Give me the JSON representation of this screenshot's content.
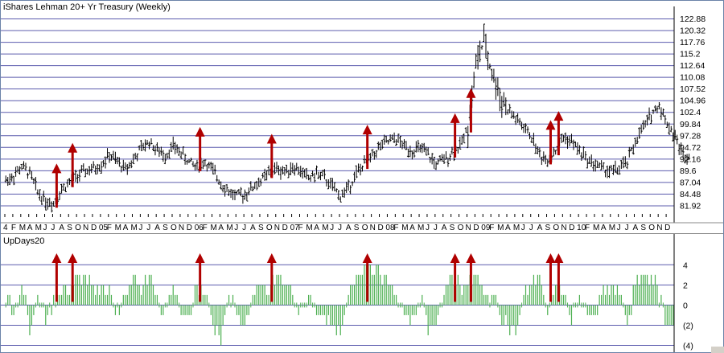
{
  "colors": {
    "price_grid": "#4040a0",
    "indicator_grid": "#4040a0",
    "price_bars": "#000000",
    "indicator_bars": "#4caf50",
    "arrows": "#b00000",
    "frame": "#6b83a8"
  },
  "chart_data": [
    {
      "type": "bar",
      "subtype": "ohlc-weekly",
      "title": "iShares Lehman 20+ Yr Treasury (Weekly)",
      "y_ticks": [
        122.88,
        120.32,
        117.76,
        115.2,
        112.64,
        110.08,
        107.52,
        104.96,
        102.4,
        99.84,
        97.28,
        94.72,
        92.16,
        89.6,
        87.04,
        84.48,
        81.92
      ],
      "y_tick_labels": [
        "122.88",
        "120.32",
        "117.76",
        "115.2",
        "112.64",
        "110.08",
        "107.52",
        "104.96",
        "102.4",
        "99.84",
        "97.28",
        "94.72",
        "92.16",
        "89.6",
        "87.04",
        "84.48",
        "81.92"
      ],
      "ylim": [
        80.5,
        123.5
      ],
      "grid": true,
      "x_month_labels": [
        "4",
        "F",
        "M",
        "A",
        "M",
        "J",
        "J",
        "A",
        "S",
        "O",
        "N",
        "D",
        "05",
        "F",
        "M",
        "A",
        "M",
        "J",
        "J",
        "A",
        "S",
        "O",
        "N",
        "D",
        "06",
        "F",
        "M",
        "A",
        "M",
        "J",
        "J",
        "A",
        "S",
        "O",
        "N",
        "D",
        "07",
        "F",
        "M",
        "A",
        "M",
        "J",
        "J",
        "A",
        "S",
        "O",
        "N",
        "D",
        "08",
        "F",
        "M",
        "A",
        "M",
        "J",
        "J",
        "A",
        "S",
        "O",
        "N",
        "D",
        "09",
        "F",
        "M",
        "A",
        "M",
        "J",
        "J",
        "A",
        "S",
        "O",
        "N",
        "D",
        "10",
        "F",
        "M",
        "A",
        "M",
        "J",
        "J",
        "A",
        "S",
        "O",
        "N",
        "D"
      ],
      "x_month_index": [
        0,
        1,
        2,
        3,
        4,
        5,
        6,
        7,
        8,
        9,
        10,
        11,
        12,
        13,
        14,
        15,
        16,
        17,
        18,
        19,
        20,
        21,
        22,
        23,
        24,
        25,
        26,
        27,
        28,
        29,
        30,
        31,
        32,
        33,
        34,
        35,
        36,
        37,
        38,
        39,
        40,
        41,
        42,
        43,
        44,
        45,
        46,
        47,
        48,
        49,
        50,
        51,
        52,
        53,
        54,
        55,
        56,
        57,
        58,
        59,
        60,
        61,
        62,
        63,
        64,
        65,
        66,
        67,
        68,
        69,
        70,
        71,
        72,
        73,
        74,
        75,
        76,
        77,
        78,
        79,
        80,
        81,
        82,
        83
      ],
      "series": [
        {
          "approx_close_by_month": [
            87.5,
            88.5,
            90.5,
            89,
            85,
            83,
            82.5,
            85.5,
            87,
            88.5,
            89.5,
            90,
            91,
            93,
            91.5,
            90,
            92,
            94.5,
            96,
            94,
            93,
            95,
            93.5,
            91.5,
            90.5,
            91.5,
            89.5,
            87,
            85,
            84,
            84.5,
            86,
            87.5,
            89,
            90,
            89.5,
            90.5,
            89.5,
            88,
            89,
            88,
            86,
            84,
            86,
            89,
            91,
            93,
            95,
            96,
            96.5,
            95,
            94,
            94.5,
            93,
            91,
            92,
            93.5,
            95,
            99,
            113,
            118,
            111,
            106,
            103,
            101,
            99,
            97,
            93,
            92,
            94,
            97,
            96,
            94,
            92,
            91,
            90,
            89.5,
            90,
            91.5,
            96,
            99,
            102,
            104,
            100,
            97,
            93
          ]
        }
      ],
      "buy_signal_arrows_month_index": [
        6,
        8,
        24,
        33,
        45,
        56,
        58,
        68,
        69
      ]
    },
    {
      "type": "bar",
      "title": "UpDays20",
      "y_tick_labels": [
        "4",
        "2",
        "0",
        "(2)",
        "(4)"
      ],
      "y_ticks": [
        4,
        2,
        0,
        -2,
        -4
      ],
      "ylim": [
        -4.2,
        4.9
      ],
      "grid": true,
      "series": [
        {
          "approx_value_by_month": [
            1,
            -1,
            2,
            -2,
            1,
            -1,
            0,
            2,
            1,
            3,
            3,
            2,
            1,
            2,
            -1,
            1,
            3,
            2,
            3,
            1,
            -1,
            2,
            -1,
            -1,
            2,
            1,
            -2,
            -3,
            1,
            -1,
            -2,
            1,
            2,
            1,
            3,
            2,
            1,
            -1,
            1,
            -1,
            -1,
            -2,
            -3,
            1,
            3,
            4,
            4,
            3,
            2,
            1,
            -1,
            -2,
            1,
            -2,
            -2,
            1,
            3,
            2,
            2,
            3,
            1,
            1,
            -1,
            -2,
            -3,
            1,
            2,
            3,
            -1,
            2,
            1,
            -1,
            1,
            -1,
            -1,
            1,
            2,
            1,
            -2,
            2,
            3,
            3,
            1,
            -2
          ]
        }
      ],
      "buy_signal_arrows_month_index": [
        6,
        8,
        24,
        33,
        45,
        56,
        58,
        68,
        69
      ]
    }
  ]
}
